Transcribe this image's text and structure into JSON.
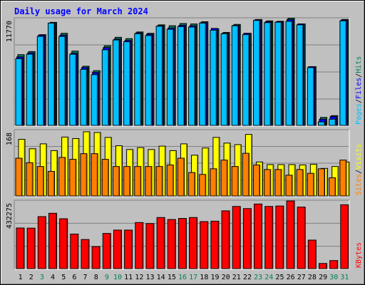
{
  "title": "Daily usage for March 2024",
  "colors": {
    "background": "#c0c0c0",
    "title": "#0000ff",
    "panel_bg": "#c0c0c0",
    "gridline": "#808080",
    "hits": "#00805c",
    "files": "#0000ff",
    "pages": "#00c0ff",
    "visits": "#ffff00",
    "sites": "#ff8000",
    "kbytes": "#ff0000",
    "weekday_label": "#000000",
    "weekend_label": "#00805c"
  },
  "chart_data": [
    {
      "type": "bar",
      "panel": "hits",
      "categories": [
        "1",
        "2",
        "3",
        "4",
        "5",
        "6",
        "7",
        "8",
        "9",
        "10",
        "11",
        "12",
        "13",
        "14",
        "15",
        "16",
        "17",
        "18",
        "19",
        "20",
        "21",
        "22",
        "23",
        "24",
        "25",
        "26",
        "27",
        "28",
        "29",
        "30",
        "31"
      ],
      "weekend_days": [
        "3",
        "9",
        "10",
        "16",
        "17",
        "23",
        "24",
        "30",
        "31"
      ],
      "axis_max_label": "11770",
      "ylim": [
        0,
        11770
      ],
      "series": [
        {
          "name": "Hits",
          "color": "#00805c",
          "values": [
            7950,
            8300,
            10200,
            11580,
            10350,
            8350,
            6650,
            6150,
            8950,
            9900,
            9750,
            10500,
            10350,
            11300,
            11200,
            11450,
            11400,
            11650,
            10850,
            10450,
            11350,
            10350,
            11900,
            11750,
            11700,
            12050,
            11400,
            6600,
            900,
            1100,
            11900
          ]
        },
        {
          "name": "Files",
          "color": "#0000ff",
          "values": [
            7700,
            8150,
            10150,
            11500,
            10150,
            8100,
            6500,
            5950,
            8750,
            9700,
            9550,
            10400,
            10250,
            11200,
            10950,
            11250,
            11200,
            11550,
            10900,
            10350,
            11250,
            10350,
            11850,
            11650,
            11650,
            11900,
            11400,
            6600,
            700,
            1000,
            11850
          ]
        },
        {
          "name": "Pages",
          "color": "#00c0ff",
          "values": [
            7500,
            8000,
            10000,
            11500,
            10000,
            8000,
            6300,
            5700,
            8500,
            9600,
            9400,
            10300,
            10100,
            11150,
            10800,
            11100,
            11050,
            11500,
            10700,
            10300,
            11200,
            10200,
            11800,
            11550,
            11600,
            11700,
            11300,
            6500,
            400,
            700,
            11750
          ]
        }
      ],
      "legend": [
        {
          "text": "Pages",
          "color": "#00c0ff"
        },
        {
          "text": "/",
          "color": "#000000"
        },
        {
          "text": "Files",
          "color": "#0000ff"
        },
        {
          "text": "/",
          "color": "#000000"
        },
        {
          "text": "Hits",
          "color": "#00805c"
        }
      ]
    },
    {
      "type": "bar",
      "panel": "visits",
      "categories": [
        "1",
        "2",
        "3",
        "4",
        "5",
        "6",
        "7",
        "8",
        "9",
        "10",
        "11",
        "12",
        "13",
        "14",
        "15",
        "16",
        "17",
        "18",
        "19",
        "20",
        "21",
        "22",
        "23",
        "24",
        "25",
        "26",
        "27",
        "28",
        "29",
        "30",
        "31"
      ],
      "axis_max_label": "168",
      "ylim": [
        0,
        168
      ],
      "series": [
        {
          "name": "Visits",
          "color": "#ffff00",
          "values": [
            150,
            125,
            138,
            120,
            156,
            152,
            170,
            168,
            155,
            133,
            123,
            128,
            123,
            132,
            120,
            138,
            108,
            127,
            155,
            140,
            136,
            163,
            90,
            83,
            83,
            83,
            82,
            84,
            73,
            78,
            90
          ]
        },
        {
          "name": "Sites",
          "color": "#ff8000",
          "values": [
            100,
            88,
            78,
            65,
            102,
            97,
            112,
            112,
            97,
            78,
            78,
            78,
            78,
            78,
            82,
            100,
            62,
            57,
            72,
            95,
            78,
            113,
            82,
            70,
            70,
            55,
            70,
            60,
            72,
            48,
            95
          ]
        }
      ],
      "legend": [
        {
          "text": "Sites",
          "color": "#ff8000"
        },
        {
          "text": "/",
          "color": "#000000"
        },
        {
          "text": "Visits",
          "color": "#ffff00"
        }
      ]
    },
    {
      "type": "bar",
      "panel": "kbytes",
      "categories": [
        "1",
        "2",
        "3",
        "4",
        "5",
        "6",
        "7",
        "8",
        "9",
        "10",
        "11",
        "12",
        "13",
        "14",
        "15",
        "16",
        "17",
        "18",
        "19",
        "20",
        "21",
        "22",
        "23",
        "24",
        "25",
        "26",
        "27",
        "28",
        "29",
        "30",
        "31"
      ],
      "axis_max_label": "432275",
      "ylim": [
        0,
        432275
      ],
      "series": [
        {
          "name": "KBytes",
          "color": "#ff0000",
          "values": [
            268000,
            267000,
            343000,
            365000,
            329000,
            228000,
            192000,
            145000,
            232000,
            254000,
            254000,
            304000,
            297000,
            337000,
            324000,
            331000,
            337000,
            310000,
            313000,
            381000,
            410000,
            396000,
            426000,
            410000,
            413000,
            446000,
            406000,
            188000,
            34000,
            53000,
            421000
          ]
        }
      ],
      "legend": [
        {
          "text": "KBytes",
          "color": "#ff0000"
        }
      ]
    }
  ]
}
